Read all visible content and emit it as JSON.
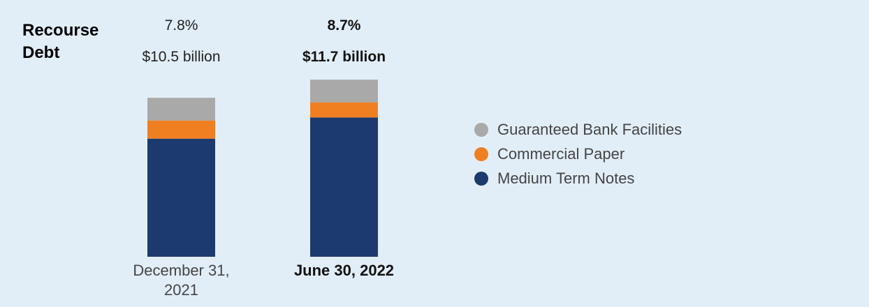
{
  "chart_data": {
    "type": "stacked-bar",
    "title": "Recourse Debt",
    "categories": [
      "December 31, 2021",
      "June 30, 2022"
    ],
    "series": [
      {
        "name": "Medium Term Notes",
        "color": "#1c3a6e",
        "values": [
          7.8,
          9.2
        ]
      },
      {
        "name": "Commercial Paper",
        "color": "#f07f22",
        "values": [
          1.2,
          1.0
        ]
      },
      {
        "name": "Guaranteed Bank Facilities",
        "color": "#a9a9a9",
        "values": [
          1.5,
          1.5
        ]
      }
    ],
    "totals": {
      "values": [
        10.5,
        11.7
      ],
      "value_labels": [
        "$10.5 billion",
        "$11.7 billion"
      ]
    },
    "percentages": {
      "values": [
        7.8,
        8.7
      ],
      "value_labels": [
        "7.8%",
        "8.7%"
      ]
    },
    "emphasis_index": 1,
    "legend": "right"
  }
}
